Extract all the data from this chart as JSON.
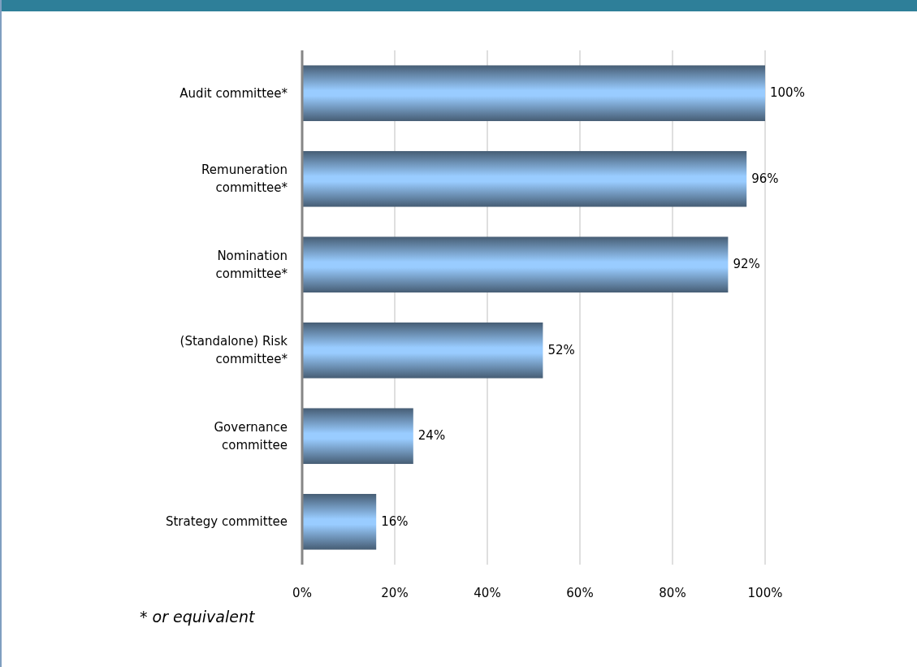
{
  "chart_data": {
    "type": "bar",
    "orientation": "horizontal",
    "categories": [
      "Audit committee*",
      "Remuneration committee*",
      "Nomination committee*",
      "(Standalone) Risk committee*",
      "Governance committee",
      "Strategy committee"
    ],
    "values": [
      100,
      96,
      92,
      52,
      24,
      16
    ],
    "value_labels": [
      "100%",
      "96%",
      "92%",
      "52%",
      "24%",
      "16%"
    ],
    "color": "#99ccff",
    "xlim": [
      0,
      100
    ],
    "xticks": [
      {
        "value": 0,
        "label": "0%"
      },
      {
        "value": 20,
        "label": "20%"
      },
      {
        "value": 40,
        "label": "40%"
      },
      {
        "value": 60,
        "label": "60%"
      },
      {
        "value": 80,
        "label": "80%"
      },
      {
        "value": 100,
        "label": "100%"
      }
    ],
    "grid": "x",
    "annotations": [
      "* or equivalent"
    ]
  }
}
